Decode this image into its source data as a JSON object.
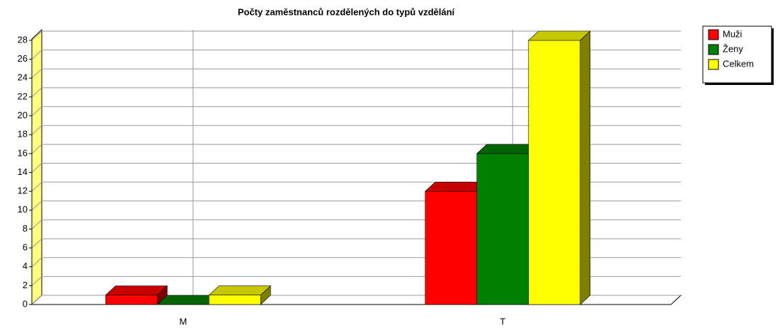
{
  "chart_data": {
    "type": "bar3d",
    "title": "Počty zaměstnanců rozdělených do typů vzdělání",
    "categories": [
      "M",
      "T"
    ],
    "series": [
      {
        "name": "Muži",
        "color": "#ff0000",
        "values": [
          1,
          12
        ]
      },
      {
        "name": "Ženy",
        "color": "#008000",
        "values": [
          0,
          16
        ]
      },
      {
        "name": "Celkem",
        "color": "#ffff00",
        "values": [
          1,
          28
        ]
      }
    ],
    "ylim": [
      0,
      28
    ],
    "yticks": [
      0,
      2,
      4,
      6,
      8,
      10,
      12,
      14,
      16,
      18,
      20,
      22,
      24,
      26,
      28
    ],
    "grid": true,
    "legend": "right"
  }
}
